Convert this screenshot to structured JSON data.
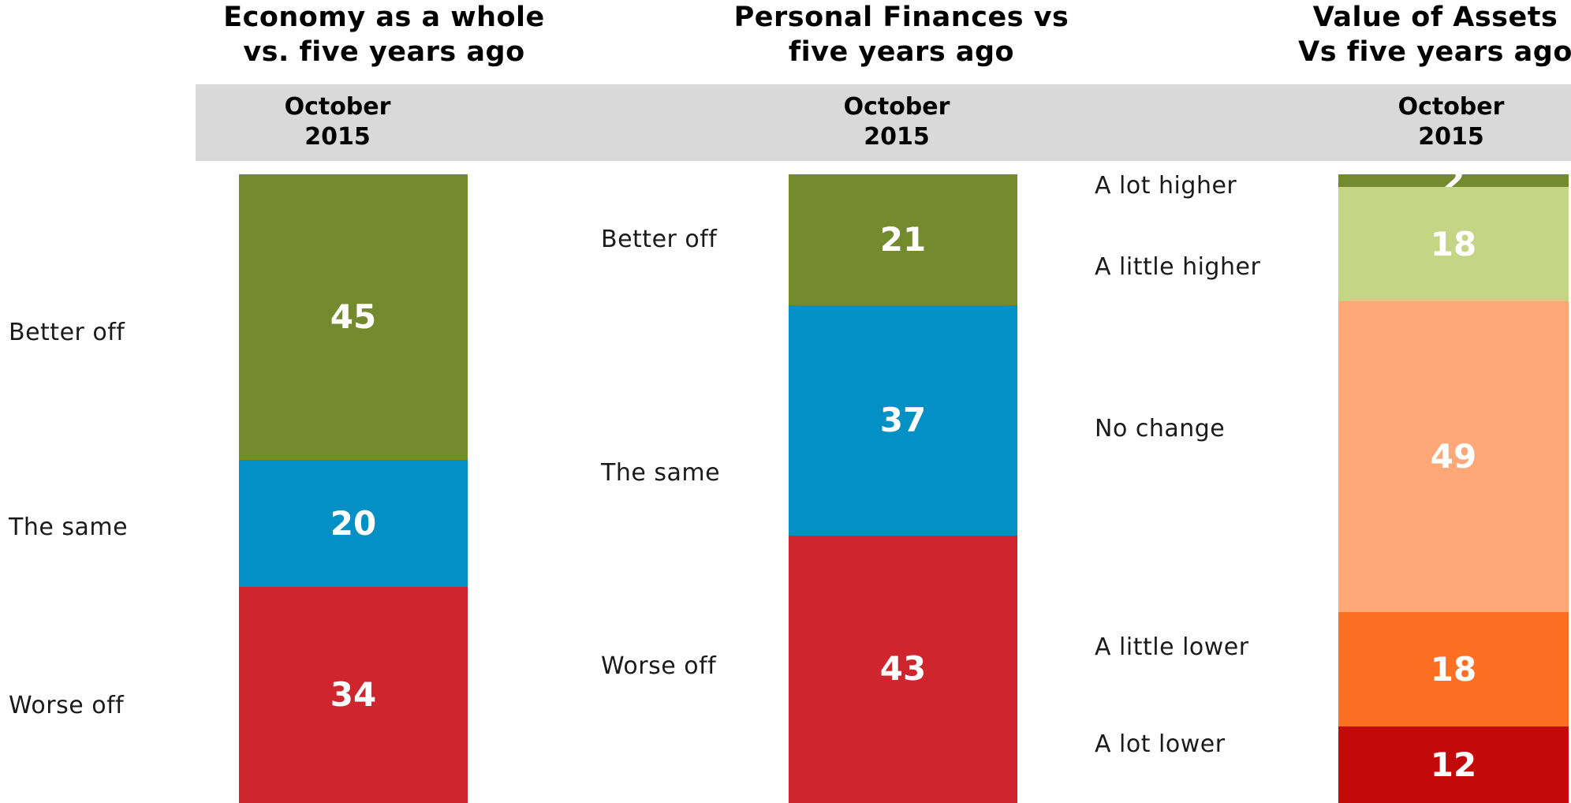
{
  "chart_data": [
    {
      "type": "bar",
      "title": "Economy as a whole vs. five years ago",
      "title_lines": [
        "Economy as a whole",
        "vs. five years ago"
      ],
      "period": "October 2015",
      "period_lines": [
        "October",
        "2015"
      ],
      "series": [
        {
          "name": "Better off",
          "value": 45,
          "color": "#738a2f"
        },
        {
          "name": "The same",
          "value": 20,
          "color": "#0290c5"
        },
        {
          "name": "Worse off",
          "value": 34,
          "color": "#cf252d"
        }
      ]
    },
    {
      "type": "bar",
      "title": "Personal Finances vs five years ago",
      "title_lines": [
        "Personal Finances vs",
        "five years ago"
      ],
      "period": "October 2015",
      "period_lines": [
        "October",
        "2015"
      ],
      "series": [
        {
          "name": "Better off",
          "value": 21,
          "color": "#738a2f"
        },
        {
          "name": "The same",
          "value": 37,
          "color": "#0290c5"
        },
        {
          "name": "Worse off",
          "value": 43,
          "color": "#cf252d"
        }
      ]
    },
    {
      "type": "bar",
      "title": "Value of Assets Vs five years ago",
      "title_lines": [
        "Value of Assets",
        "Vs five years ago"
      ],
      "period": "October 2015",
      "period_lines": [
        "October",
        "2015"
      ],
      "series": [
        {
          "name": "A lot higher",
          "value": 2,
          "color": "#738a2f"
        },
        {
          "name": "A little higher",
          "value": 18,
          "color": "#c4d585"
        },
        {
          "name": "No change",
          "value": 49,
          "color": "#fda876"
        },
        {
          "name": "A little lower",
          "value": 18,
          "color": "#fd6f23"
        },
        {
          "name": "A lot lower",
          "value": 12,
          "color": "#c20a0a"
        }
      ]
    }
  ]
}
